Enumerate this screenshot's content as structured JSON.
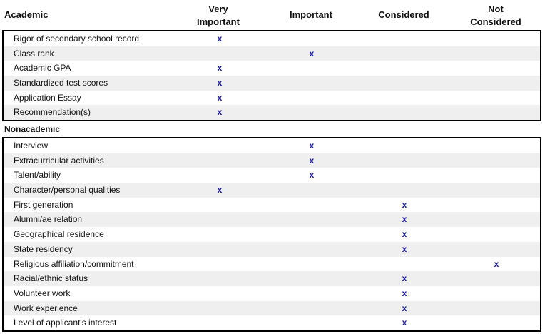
{
  "columns": [
    "Very\nImportant",
    "Important",
    "Considered",
    "Not\nConsidered"
  ],
  "sections": [
    {
      "title": "Academic",
      "rows": [
        {
          "label": "Rigor of secondary school record",
          "level": 0
        },
        {
          "label": "Class rank",
          "level": 1
        },
        {
          "label": "Academic GPA",
          "level": 0
        },
        {
          "label": "Standardized test scores",
          "level": 0
        },
        {
          "label": "Application Essay",
          "level": 0
        },
        {
          "label": "Recommendation(s)",
          "level": 0
        }
      ]
    },
    {
      "title": "Nonacademic",
      "rows": [
        {
          "label": "Interview",
          "level": 1
        },
        {
          "label": "Extracurricular activities",
          "level": 1
        },
        {
          "label": "Talent/ability",
          "level": 1
        },
        {
          "label": "Character/personal qualities",
          "level": 0
        },
        {
          "label": "First generation",
          "level": 2
        },
        {
          "label": "Alumni/ae relation",
          "level": 2
        },
        {
          "label": "Geographical residence",
          "level": 2
        },
        {
          "label": "State residency",
          "level": 2
        },
        {
          "label": "Religious affiliation/commitment",
          "level": 3
        },
        {
          "label": "Racial/ethnic status",
          "level": 2
        },
        {
          "label": "Volunteer work",
          "level": 2
        },
        {
          "label": "Work experience",
          "level": 2
        },
        {
          "label": "Level of applicant's interest",
          "level": 2
        }
      ]
    }
  ],
  "mark_symbol": "x",
  "colors": {
    "mark": "#1a1aa8",
    "alt_row": "#efefef",
    "border": "#000000"
  }
}
